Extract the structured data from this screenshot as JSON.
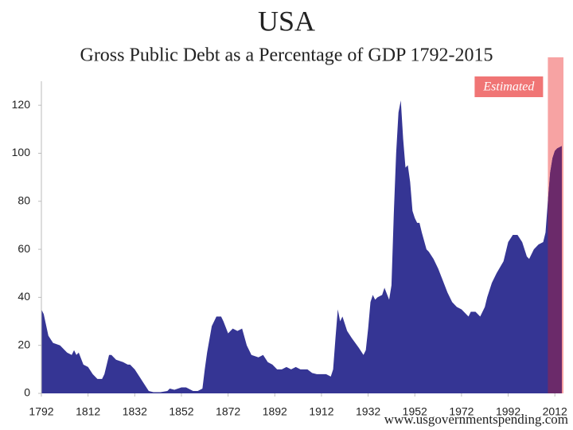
{
  "chart_data": {
    "type": "area",
    "title": "USA",
    "subtitle": "Gross Public Debt as a Percentage of GDP 1792-2015",
    "annotation": "Estimated",
    "source": "www.usgovernmentspending.com",
    "estimated_range": [
      2009,
      2015
    ],
    "color": "#353594",
    "estimated_color": "#6b2a6a",
    "estimated_band_color": "#f7a3a3",
    "x": [
      1792,
      1793,
      1795,
      1797,
      1800,
      1803,
      1805,
      1806,
      1807,
      1808,
      1810,
      1812,
      1814,
      1816,
      1818,
      1819,
      1821,
      1822,
      1824,
      1827,
      1829,
      1830,
      1832,
      1834,
      1836,
      1838,
      1840,
      1843,
      1846,
      1847,
      1849,
      1852,
      1854,
      1857,
      1859,
      1861,
      1862,
      1863,
      1865,
      1867,
      1869,
      1870,
      1872,
      1874,
      1876,
      1878,
      1880,
      1882,
      1885,
      1887,
      1889,
      1891,
      1893,
      1895,
      1897,
      1899,
      1901,
      1903,
      1906,
      1908,
      1910,
      1912,
      1914,
      1916,
      1917,
      1918,
      1919,
      1920,
      1921,
      1923,
      1925,
      1928,
      1930,
      1931,
      1932,
      1933,
      1934,
      1935,
      1936,
      1938,
      1939,
      1941,
      1942,
      1943,
      1944,
      1945,
      1946,
      1947,
      1948,
      1949,
      1950,
      1951,
      1952,
      1953,
      1954,
      1955,
      1957,
      1958,
      1960,
      1962,
      1964,
      1966,
      1968,
      1970,
      1972,
      1974,
      1975,
      1976,
      1978,
      1980,
      1982,
      1983,
      1985,
      1987,
      1990,
      1992,
      1994,
      1996,
      1998,
      2000,
      2001,
      2003,
      2005,
      2007,
      2008,
      2009,
      2010,
      2011,
      2012,
      2013,
      2014,
      2015
    ],
    "values": [
      35,
      33,
      24,
      21,
      20,
      17,
      16,
      18,
      16,
      17,
      12,
      11,
      8,
      6,
      6,
      8,
      16,
      16,
      14,
      13,
      12,
      12,
      10,
      7,
      4,
      1,
      0.5,
      0.5,
      1,
      2,
      1.5,
      2.5,
      2.5,
      1,
      1,
      2,
      10,
      17,
      28,
      32,
      32,
      30,
      25,
      27,
      26,
      27,
      20,
      16,
      15,
      16,
      13,
      12,
      10,
      10,
      11,
      10,
      11,
      10,
      10,
      8.5,
      8,
      8,
      8,
      7,
      10,
      23,
      35,
      30,
      32,
      26,
      23,
      19,
      16,
      18,
      27,
      38,
      41,
      39,
      40,
      41,
      44,
      39,
      45,
      75,
      100,
      117,
      122,
      106,
      94,
      95,
      88,
      76,
      73,
      71,
      71,
      67,
      60,
      59,
      56,
      52,
      47,
      42,
      38,
      36,
      35,
      33,
      32,
      34,
      34,
      32,
      36,
      40,
      46,
      50,
      55,
      63,
      66,
      66,
      63,
      57,
      56,
      60,
      62,
      63,
      67,
      80,
      92,
      98,
      101,
      102,
      102.5,
      103
    ],
    "xlim": [
      1792,
      2015
    ],
    "ylim": [
      0,
      130
    ],
    "xticks": [
      1792,
      1812,
      1832,
      1852,
      1872,
      1892,
      1912,
      1932,
      1952,
      1972,
      1992,
      2012
    ],
    "yticks": [
      0,
      20,
      40,
      60,
      80,
      100,
      120
    ]
  }
}
